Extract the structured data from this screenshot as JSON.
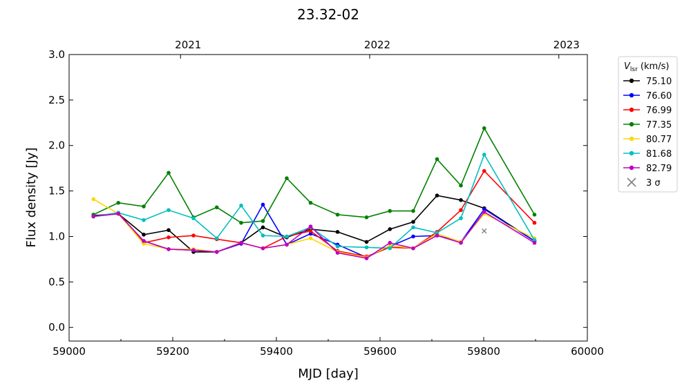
{
  "chart_data": {
    "type": "line",
    "title": "23.32-02",
    "xlabel": "MJD [day]",
    "ylabel": "Flux density [Jy]",
    "xlim": [
      59000,
      60000
    ],
    "ylim": [
      -0.15,
      3.0
    ],
    "x_ticks": [
      59000,
      59200,
      59400,
      59600,
      59800,
      60000
    ],
    "y_ticks": [
      0.0,
      0.5,
      1.0,
      1.5,
      2.0,
      2.5,
      3.0
    ],
    "x_tick_labels": [
      "59000",
      "59200",
      "59400",
      "59600",
      "59800",
      "60000"
    ],
    "y_tick_labels": [
      "0.0",
      "0.5",
      "1.0",
      "1.5",
      "2.0",
      "2.5",
      "3.0"
    ],
    "top_axis": {
      "label_values": [
        59215,
        59580,
        59945
      ],
      "labels": [
        "2021",
        "2022",
        "2023"
      ]
    },
    "grid": false,
    "legend": {
      "placement": "outside-right",
      "title_main": "V",
      "title_sub": "lsr",
      "title_units": " (km/s)"
    },
    "series": [
      {
        "name": "75.10",
        "color": "#000000",
        "x": [
          59047,
          59095,
          59144,
          59192,
          59240,
          59285,
          59332,
          59374,
          59420,
          59466,
          59518,
          59574,
          59619,
          59664,
          59710,
          59756,
          59801,
          59898
        ],
        "y": [
          1.23,
          1.25,
          1.02,
          1.07,
          0.83,
          0.83,
          0.93,
          1.1,
          0.99,
          1.08,
          1.05,
          0.94,
          1.08,
          1.16,
          1.45,
          1.4,
          1.31,
          0.95
        ]
      },
      {
        "name": "76.60",
        "color": "#0000ff",
        "x": [
          59047,
          59095,
          59144,
          59192,
          59240,
          59285,
          59332,
          59374,
          59420,
          59466,
          59518,
          59574,
          59619,
          59664,
          59710,
          59756,
          59801,
          59898
        ],
        "y": [
          1.22,
          1.25,
          0.95,
          0.86,
          0.85,
          0.83,
          0.92,
          1.35,
          0.91,
          1.03,
          0.91,
          0.77,
          0.89,
          1.0,
          1.01,
          0.94,
          1.3,
          0.95
        ]
      },
      {
        "name": "76.99",
        "color": "#ff0000",
        "x": [
          59047,
          59095,
          59144,
          59192,
          59240,
          59285,
          59332,
          59374,
          59420,
          59466,
          59518,
          59574,
          59619,
          59664,
          59710,
          59756,
          59801,
          59898
        ],
        "y": [
          1.22,
          1.26,
          0.93,
          0.99,
          1.01,
          0.97,
          0.93,
          0.87,
          1.0,
          1.06,
          0.84,
          0.78,
          0.88,
          0.87,
          1.05,
          1.29,
          1.72,
          1.15
        ]
      },
      {
        "name": "77.35",
        "color": "#008000",
        "x": [
          59047,
          59095,
          59144,
          59192,
          59240,
          59285,
          59332,
          59374,
          59420,
          59466,
          59518,
          59574,
          59619,
          59664,
          59710,
          59756,
          59801,
          59898
        ],
        "y": [
          1.24,
          1.37,
          1.33,
          1.7,
          1.21,
          1.32,
          1.15,
          1.17,
          1.64,
          1.37,
          1.24,
          1.21,
          1.28,
          1.28,
          1.85,
          1.56,
          2.19,
          1.24
        ]
      },
      {
        "name": "80.77",
        "color": "#ffd700",
        "x": [
          59047,
          59095,
          59144,
          59192,
          59240,
          59285,
          59332,
          59374,
          59420,
          59466,
          59518,
          59574,
          59619,
          59664,
          59710,
          59756,
          59801,
          59898
        ],
        "y": [
          1.41,
          1.25,
          0.92,
          0.86,
          0.86,
          0.83,
          0.93,
          0.87,
          0.91,
          0.98,
          0.83,
          0.77,
          0.9,
          0.87,
          1.03,
          0.94,
          1.25,
          0.98
        ]
      },
      {
        "name": "81.68",
        "color": "#00bfbf",
        "x": [
          59047,
          59095,
          59144,
          59192,
          59240,
          59285,
          59332,
          59374,
          59420,
          59466,
          59518,
          59574,
          59619,
          59664,
          59710,
          59756,
          59801,
          59898
        ],
        "y": [
          1.22,
          1.26,
          1.18,
          1.29,
          1.2,
          0.98,
          1.34,
          1.01,
          1.0,
          1.1,
          0.89,
          0.88,
          0.87,
          1.1,
          1.04,
          1.2,
          1.9,
          0.96
        ]
      },
      {
        "name": "82.79",
        "color": "#bf00bf",
        "x": [
          59047,
          59095,
          59144,
          59192,
          59240,
          59285,
          59332,
          59374,
          59420,
          59466,
          59518,
          59574,
          59619,
          59664,
          59710,
          59756,
          59801,
          59898
        ],
        "y": [
          1.22,
          1.25,
          0.95,
          0.86,
          0.85,
          0.83,
          0.93,
          0.87,
          0.91,
          1.11,
          0.82,
          0.76,
          0.93,
          0.87,
          1.01,
          0.93,
          1.27,
          0.93
        ]
      }
    ],
    "upper_limits": {
      "name": "3 σ",
      "color": "#808080",
      "points": [
        {
          "x": 59801,
          "y": 1.06
        }
      ]
    }
  }
}
